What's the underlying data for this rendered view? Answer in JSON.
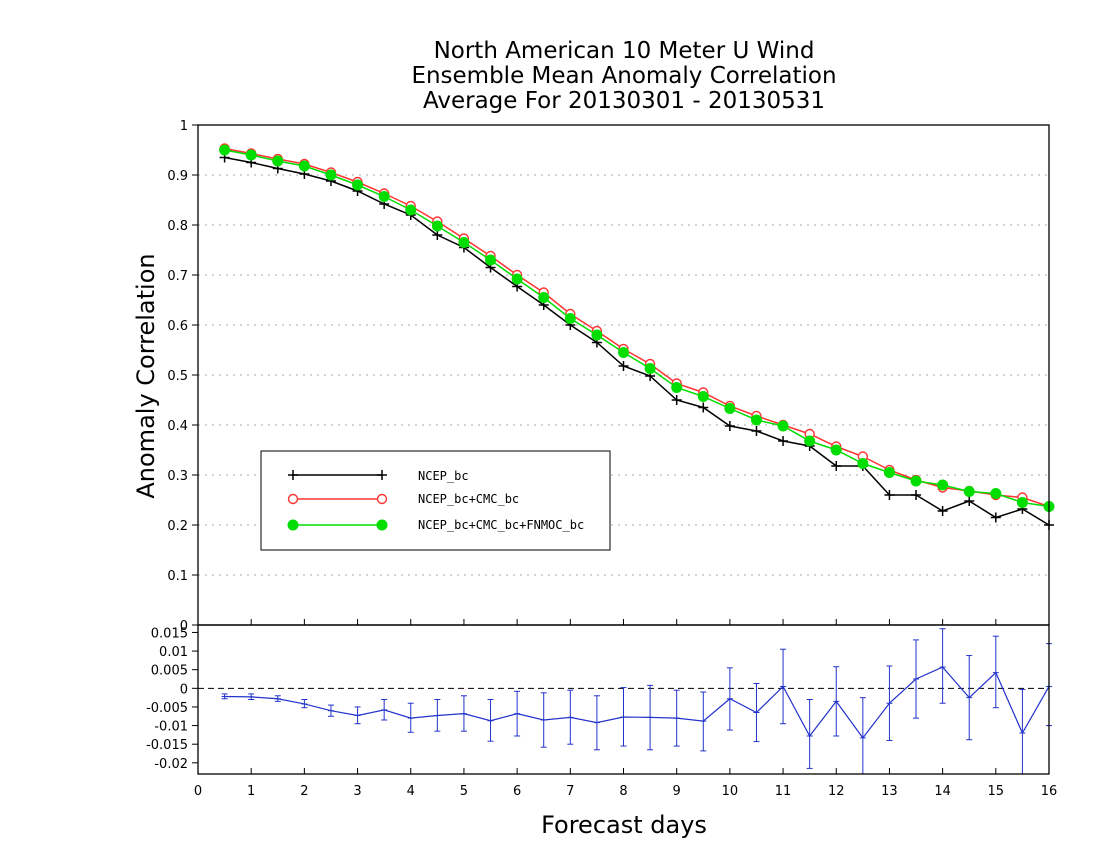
{
  "chart_data": [
    {
      "type": "line",
      "title": [
        "North American 10 Meter U Wind",
        "Ensemble Mean Anomaly Correlation",
        "Average For 20130301 - 20130531"
      ],
      "xlabel": "Forecast days",
      "ylabel": "Anomaly Correlation",
      "xlim": [
        0,
        16
      ],
      "ylim": [
        0,
        1
      ],
      "yticks": [
        "1",
        "0.9",
        "0.8",
        "0.7",
        "0.6",
        "0.5",
        "0.4",
        "0.3",
        "0.2",
        "0.1",
        "0"
      ],
      "xticks": [
        "0",
        "1",
        "2",
        "3",
        "4",
        "5",
        "6",
        "7",
        "8",
        "9",
        "10",
        "11",
        "12",
        "13",
        "14",
        "15",
        "16"
      ],
      "grid": "horizontal dotted",
      "legend_position": "center-left",
      "x": [
        0.5,
        1,
        1.5,
        2,
        2.5,
        3,
        3.5,
        4,
        4.5,
        5,
        5.5,
        6,
        6.5,
        7,
        7.5,
        8,
        8.5,
        9,
        9.5,
        10,
        10.5,
        11,
        11.5,
        12,
        12.5,
        13,
        13.5,
        14,
        14.5,
        15,
        15.5,
        16
      ],
      "series": [
        {
          "name": "NCEP_bc",
          "color": "#000000",
          "marker": "plus",
          "values": [
            0.935,
            0.925,
            0.913,
            0.902,
            0.888,
            0.868,
            0.842,
            0.82,
            0.78,
            0.755,
            0.715,
            0.677,
            0.64,
            0.6,
            0.565,
            0.518,
            0.498,
            0.45,
            0.435,
            0.398,
            0.388,
            0.368,
            0.358,
            0.318,
            0.318,
            0.26,
            0.26,
            0.228,
            0.248,
            0.215,
            0.232,
            0.2
          ]
        },
        {
          "name": "NCEP_bc+CMC_bc",
          "color": "#ff3333",
          "marker": "open-circle",
          "values": [
            0.953,
            0.943,
            0.932,
            0.922,
            0.905,
            0.886,
            0.863,
            0.838,
            0.807,
            0.773,
            0.738,
            0.7,
            0.665,
            0.622,
            0.588,
            0.552,
            0.522,
            0.483,
            0.465,
            0.438,
            0.418,
            0.4,
            0.382,
            0.357,
            0.337,
            0.31,
            0.29,
            0.275,
            0.268,
            0.26,
            0.255,
            0.237
          ]
        },
        {
          "name": "NCEP_bc+CMC_bc+FNMOC_bc",
          "color": "#00dd00",
          "marker": "filled-circle",
          "values": [
            0.95,
            0.94,
            0.928,
            0.918,
            0.9,
            0.88,
            0.857,
            0.83,
            0.798,
            0.765,
            0.73,
            0.692,
            0.655,
            0.613,
            0.58,
            0.545,
            0.513,
            0.475,
            0.457,
            0.433,
            0.41,
            0.398,
            0.368,
            0.35,
            0.323,
            0.305,
            0.288,
            0.28,
            0.267,
            0.263,
            0.245,
            0.237
          ]
        }
      ]
    },
    {
      "type": "line",
      "subtype": "difference with error bars",
      "xlim": [
        0,
        16
      ],
      "ylim": [
        -0.023,
        0.017
      ],
      "yticks": [
        "0.015",
        "0.01",
        "0.005",
        "0",
        "-0.005",
        "-0.01",
        "-0.015",
        "-0.02"
      ],
      "reference_line": 0,
      "series": [
        {
          "color": "#2233cc",
          "x": [
            0.5,
            1,
            1.5,
            2,
            2.5,
            3,
            3.5,
            4,
            4.5,
            5,
            5.5,
            6,
            6.5,
            7,
            7.5,
            8,
            8.5,
            9,
            9.5,
            10,
            10.5,
            11,
            11.5,
            12,
            12.5,
            13,
            13.5,
            14,
            14.5,
            15,
            15.5,
            16
          ],
          "values": [
            -0.0022,
            -0.0023,
            -0.0028,
            -0.0042,
            -0.006,
            -0.0073,
            -0.0058,
            -0.008,
            -0.0073,
            -0.0068,
            -0.0087,
            -0.0068,
            -0.0085,
            -0.0078,
            -0.0092,
            -0.0077,
            -0.0078,
            -0.008,
            -0.0088,
            -0.0028,
            -0.0065,
            0.0005,
            -0.0128,
            -0.0035,
            -0.0133,
            -0.004,
            0.0025,
            0.0057,
            -0.0025,
            0.0042,
            -0.012,
            0.0005
          ],
          "error_low": [
            -0.0028,
            -0.003,
            -0.0035,
            -0.0052,
            -0.0075,
            -0.0095,
            -0.0085,
            -0.0118,
            -0.0115,
            -0.0115,
            -0.0142,
            -0.0128,
            -0.0158,
            -0.015,
            -0.0165,
            -0.0155,
            -0.0165,
            -0.0155,
            -0.0168,
            -0.0112,
            -0.0143,
            -0.0095,
            -0.0215,
            -0.0128,
            -0.024,
            -0.014,
            -0.008,
            -0.004,
            -0.0138,
            -0.0052,
            -0.023,
            -0.01
          ],
          "error_high": [
            -0.0015,
            -0.0015,
            -0.002,
            -0.003,
            -0.0045,
            -0.005,
            -0.003,
            -0.004,
            -0.003,
            -0.002,
            -0.003,
            -0.0008,
            -0.0012,
            -0.0005,
            -0.002,
            0.0002,
            0.0008,
            -0.0005,
            -0.001,
            0.0055,
            0.0013,
            0.0105,
            -0.003,
            0.0058,
            -0.0025,
            0.006,
            0.013,
            0.016,
            0.0088,
            0.014,
            -0.0003,
            0.012
          ]
        }
      ]
    }
  ]
}
